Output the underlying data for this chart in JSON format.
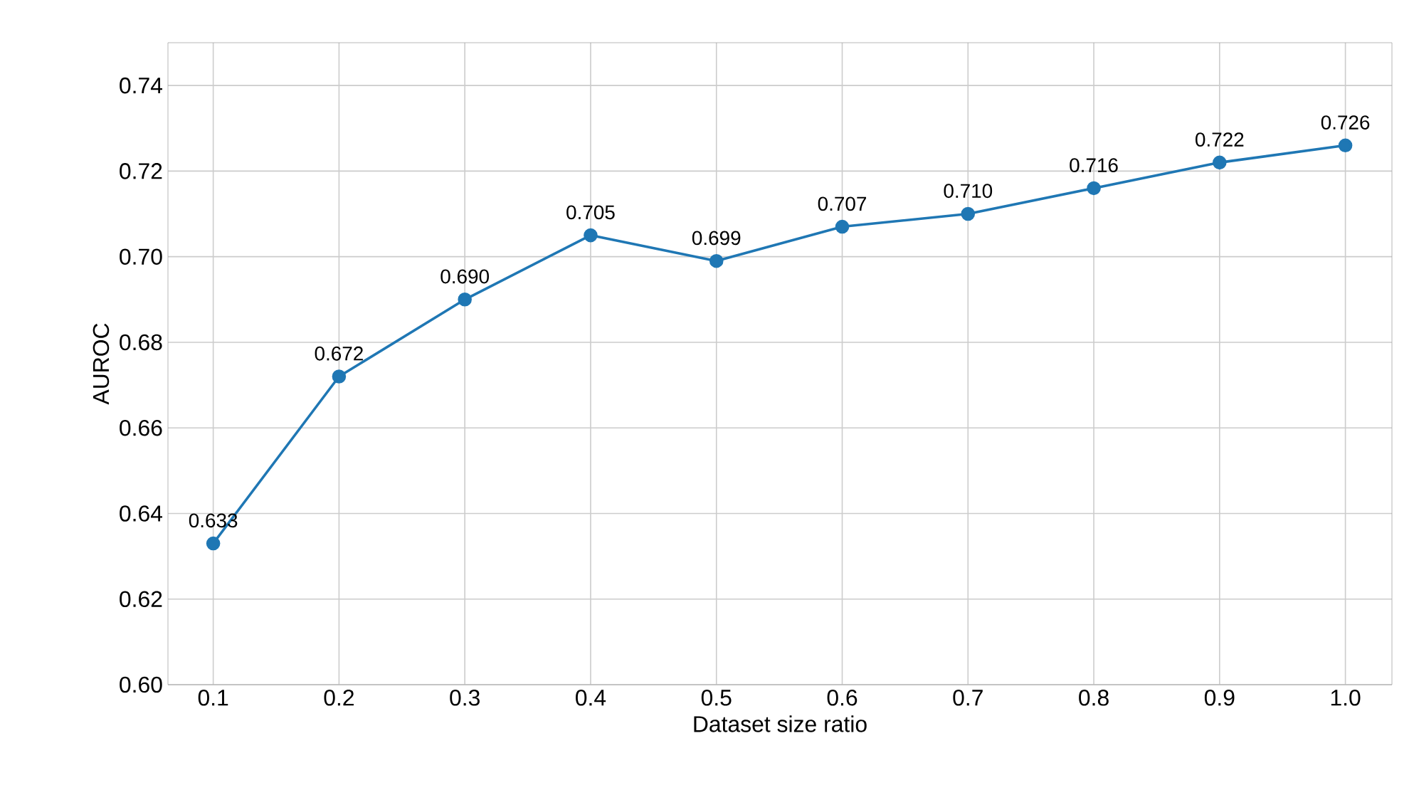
{
  "chart_data": {
    "type": "line",
    "xlabel": "Dataset size ratio",
    "ylabel": "AUROC",
    "x": [
      0.1,
      0.2,
      0.3,
      0.4,
      0.5,
      0.6,
      0.7,
      0.8,
      0.9,
      1.0
    ],
    "values": [
      0.633,
      0.672,
      0.69,
      0.705,
      0.699,
      0.707,
      0.71,
      0.716,
      0.722,
      0.726
    ],
    "value_labels": [
      "0.633",
      "0.672",
      "0.690",
      "0.705",
      "0.699",
      "0.707",
      "0.710",
      "0.716",
      "0.722",
      "0.726"
    ],
    "color": "#1f77b4",
    "marker": "circle",
    "line_style": "solid",
    "grid": true,
    "xlim": [
      0.064,
      1.037
    ],
    "ylim": [
      0.6,
      0.75
    ],
    "xticks": [
      0.1,
      0.2,
      0.3,
      0.4,
      0.5,
      0.6,
      0.7,
      0.8,
      0.9,
      {
        "value": 1.0,
        "label": "1.0"
      }
    ],
    "yticks": [
      {
        "value": 0.6,
        "label": "0.60"
      },
      {
        "value": 0.62,
        "label": "0.62"
      },
      {
        "value": 0.64,
        "label": "0.64"
      },
      {
        "value": 0.66,
        "label": "0.66"
      },
      {
        "value": 0.68,
        "label": "0.68"
      },
      {
        "value": 0.7,
        "label": "0.70"
      },
      {
        "value": 0.72,
        "label": "0.72"
      },
      {
        "value": 0.74,
        "label": "0.74"
      }
    ]
  }
}
